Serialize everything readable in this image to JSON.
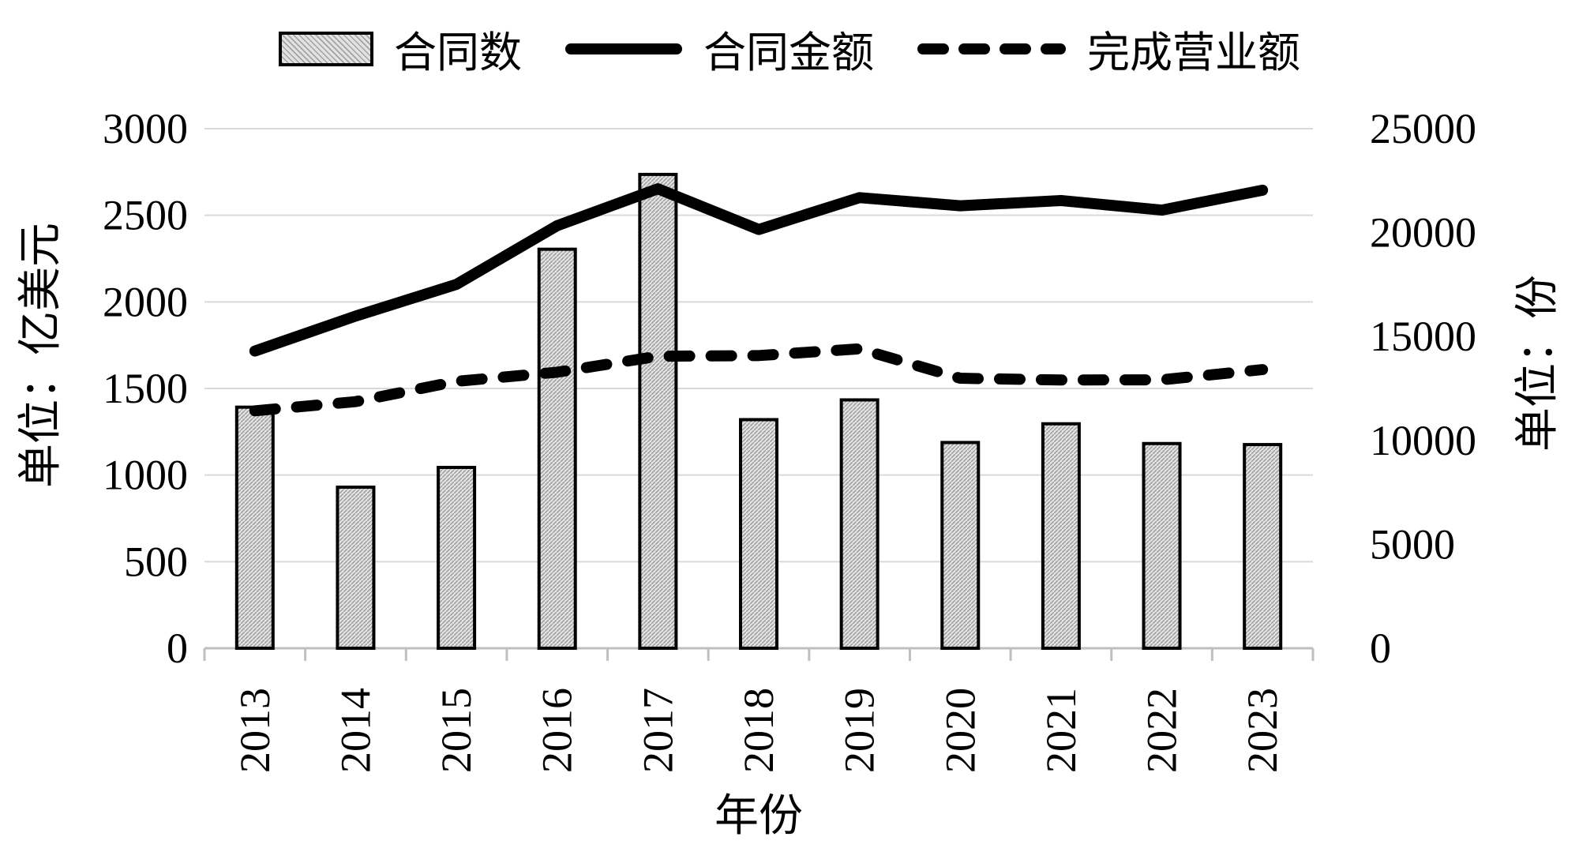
{
  "legend": {
    "items": [
      {
        "label": "合同数",
        "swatch": "bar-hatch-swatch"
      },
      {
        "label": "合同金额",
        "swatch": "solid-line-swatch"
      },
      {
        "label": "完成营业额",
        "swatch": "dashed-line-swatch"
      }
    ]
  },
  "colors": {
    "background": "#ffffff",
    "text": "#000000",
    "grid": "#d9d9d9",
    "axis": "#bfbfbf",
    "bar_fill": "#e2e2e2",
    "bar_hatch": "#9a9a9a",
    "bar_border": "#000000",
    "line": "#000000"
  },
  "chart_data": {
    "type": "combo",
    "title": "",
    "categories": [
      "2013",
      "2014",
      "2015",
      "2016",
      "2017",
      "2018",
      "2019",
      "2020",
      "2021",
      "2022",
      "2023"
    ],
    "series": [
      {
        "name": "合同数",
        "type": "bar",
        "axis": "right",
        "style": "hatched",
        "values": [
          11600,
          7750,
          8700,
          19200,
          22800,
          11000,
          11950,
          9900,
          10800,
          9850,
          9800
        ]
      },
      {
        "name": "合同金额",
        "type": "line",
        "axis": "left",
        "style": "solid",
        "values": [
          1716,
          1918,
          2101,
          2440,
          2653,
          2418,
          2602,
          2555,
          2585,
          2530,
          2645
        ]
      },
      {
        "name": "完成营业额",
        "type": "line",
        "axis": "left",
        "style": "dashed",
        "values": [
          1371,
          1424,
          1541,
          1594,
          1686,
          1690,
          1729,
          1559,
          1549,
          1550,
          1609
        ]
      }
    ],
    "left_axis": {
      "title": "单位：亿美元",
      "min": 0,
      "max": 3000,
      "step": 500,
      "ticks": [
        0,
        500,
        1000,
        1500,
        2000,
        2500,
        3000
      ]
    },
    "right_axis": {
      "title": "单位：份",
      "min": 0,
      "max": 25000,
      "step": 5000,
      "ticks": [
        0,
        5000,
        10000,
        15000,
        20000,
        25000
      ]
    },
    "x_axis": {
      "title": "年份"
    },
    "legend_position": "top",
    "grid": "horizontal"
  }
}
